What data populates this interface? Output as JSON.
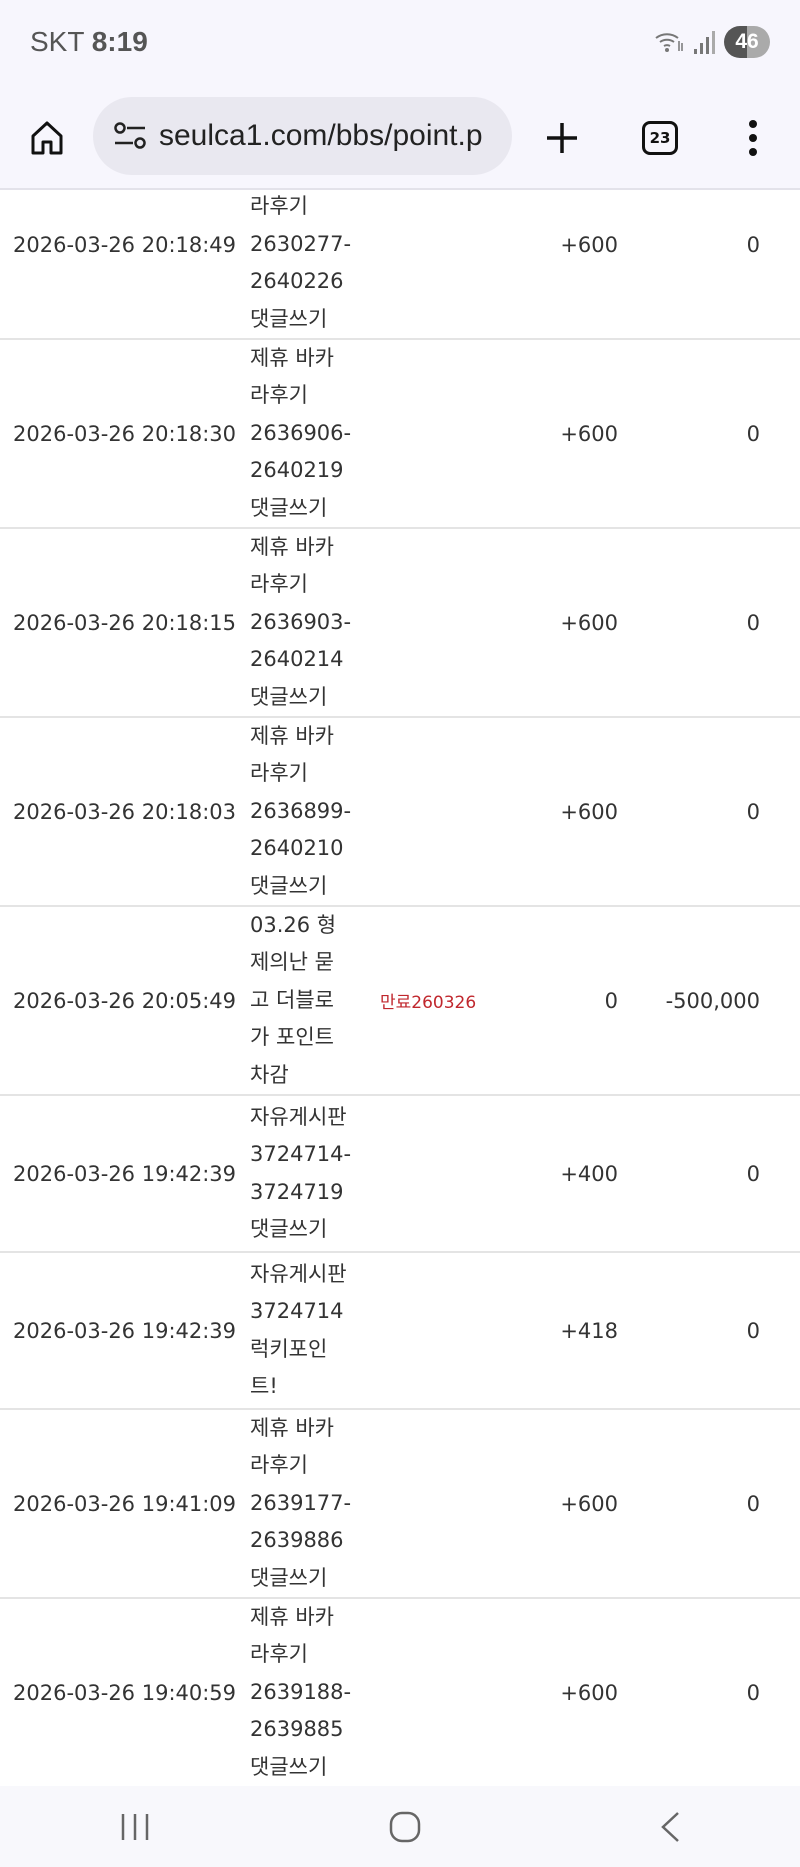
{
  "status_bar": {
    "carrier": "SKT",
    "time": "8:19",
    "battery": "46"
  },
  "browser": {
    "url": "seulca1.com/bbs/point.p",
    "tab_count": "23"
  },
  "colors": {
    "expired_tag": "#c0272d",
    "chrome_bg": "#f7f6fd",
    "url_pill": "#e9e8f0"
  },
  "rows": [
    {
      "datetime": "2026-03-26 20:18:49",
      "desc": [
        "라후기",
        "2630277-",
        "2640226",
        "댓글쓰기"
      ],
      "tag": "",
      "point": "+600",
      "used": "0"
    },
    {
      "datetime": "2026-03-26 20:18:30",
      "desc": [
        "제휴 바카",
        "라후기",
        "2636906-",
        "2640219",
        "댓글쓰기"
      ],
      "tag": "",
      "point": "+600",
      "used": "0"
    },
    {
      "datetime": "2026-03-26 20:18:15",
      "desc": [
        "제휴 바카",
        "라후기",
        "2636903-",
        "2640214",
        "댓글쓰기"
      ],
      "tag": "",
      "point": "+600",
      "used": "0"
    },
    {
      "datetime": "2026-03-26 20:18:03",
      "desc": [
        "제휴 바카",
        "라후기",
        "2636899-",
        "2640210",
        "댓글쓰기"
      ],
      "tag": "",
      "point": "+600",
      "used": "0"
    },
    {
      "datetime": "2026-03-26 20:05:49",
      "desc": [
        "03.26 형",
        "제의난 묻",
        "고 더블로",
        "가 포인트",
        "차감"
      ],
      "tag": "만료260326",
      "point": "0",
      "used": "-500,000"
    },
    {
      "datetime": "2026-03-26 19:42:39",
      "desc": [
        "자유게시판",
        "3724714-",
        "3724719",
        "댓글쓰기"
      ],
      "tag": "",
      "point": "+400",
      "used": "0"
    },
    {
      "datetime": "2026-03-26 19:42:39",
      "desc": [
        "자유게시판",
        "3724714",
        "럭키포인",
        "트!"
      ],
      "tag": "",
      "point": "+418",
      "used": "0"
    },
    {
      "datetime": "2026-03-26 19:41:09",
      "desc": [
        "제휴 바카",
        "라후기",
        "2639177-",
        "2639886",
        "댓글쓰기"
      ],
      "tag": "",
      "point": "+600",
      "used": "0"
    },
    {
      "datetime": "2026-03-26 19:40:59",
      "desc": [
        "제휴 바카",
        "라후기",
        "2639188-",
        "2639885",
        "댓글쓰기"
      ],
      "tag": "",
      "point": "+600",
      "used": "0"
    }
  ]
}
